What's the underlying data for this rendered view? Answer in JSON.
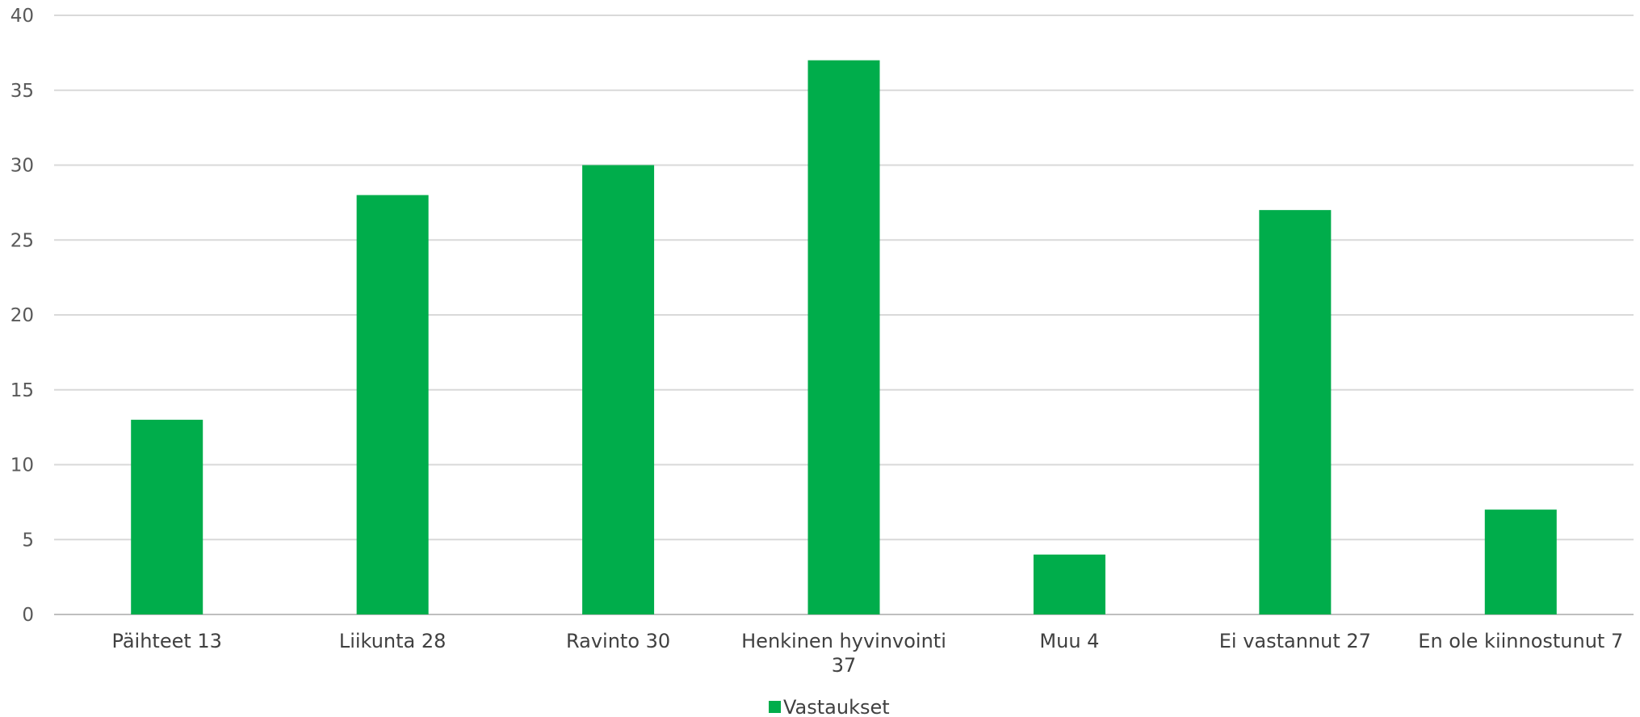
{
  "chart_data": {
    "type": "bar",
    "categories": [
      [
        "Päihteet 13"
      ],
      [
        "Liikunta 28"
      ],
      [
        "Ravinto 30"
      ],
      [
        "Henkinen hyvinvointi",
        "37"
      ],
      [
        "Muu 4"
      ],
      [
        "Ei vastannut 27"
      ],
      [
        "En ole kiinnostunut 7"
      ]
    ],
    "series": [
      {
        "name": "Vastaukset",
        "values": [
          13,
          28,
          30,
          37,
          4,
          27,
          7
        ]
      }
    ],
    "ylim": [
      0,
      40
    ],
    "yticks": [
      "0",
      "5",
      "10",
      "15",
      "20",
      "25",
      "30",
      "35",
      "40"
    ],
    "grid": true,
    "legend": "bottom",
    "colors": {
      "bar": "#00AD4B",
      "grid": "#D9D9D9",
      "axis": "#BFBFBF"
    }
  }
}
